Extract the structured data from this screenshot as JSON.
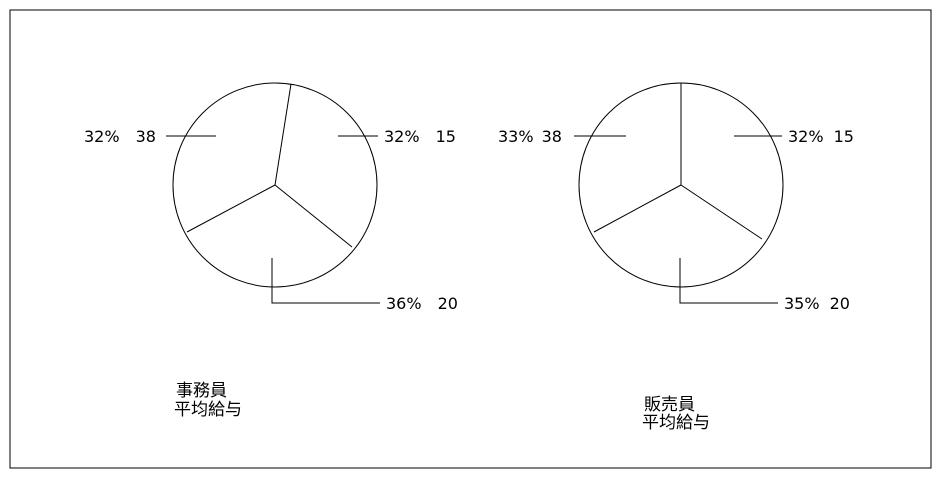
{
  "chart_data": [
    {
      "type": "pie",
      "caption": [
        "事務員",
        "平均給与"
      ],
      "slices": [
        {
          "percent": "32%",
          "code": "15",
          "value": 32
        },
        {
          "percent": "36%",
          "code": "20",
          "value": 36
        },
        {
          "percent": "32%",
          "code": "38",
          "value": 32
        }
      ]
    },
    {
      "type": "pie",
      "caption": [
        "販売員",
        "平均給与"
      ],
      "slices": [
        {
          "percent": "32%",
          "code": "15",
          "value": 32
        },
        {
          "percent": "35%",
          "code": "20",
          "value": 35
        },
        {
          "percent": "33%",
          "code": "38",
          "value": 33
        }
      ]
    }
  ],
  "colors": {
    "stroke": "#000000",
    "fill": "#ffffff"
  }
}
